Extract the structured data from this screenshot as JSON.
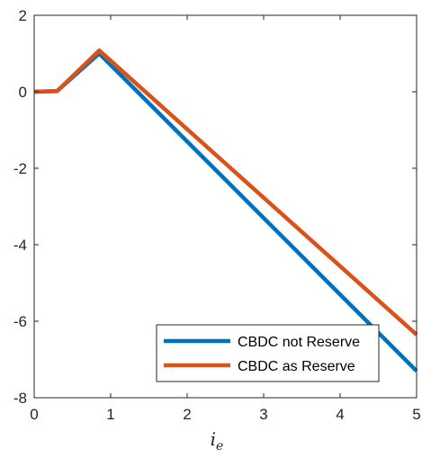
{
  "chart_data": {
    "type": "line",
    "title": "",
    "xlabel": "i",
    "xlabel_subscript": "e",
    "ylabel": "",
    "xlim": [
      0,
      5
    ],
    "ylim": [
      -8,
      2
    ],
    "xticks": [
      0,
      1,
      2,
      3,
      4,
      5
    ],
    "yticks": [
      -8,
      -6,
      -4,
      -2,
      0,
      2
    ],
    "xtick_labels": [
      "0",
      "1",
      "2",
      "3",
      "4",
      "5"
    ],
    "ytick_labels": [
      "-8",
      "-6",
      "-4",
      "-2",
      "0",
      "2"
    ],
    "grid": false,
    "legend_position": "bottom-right",
    "series": [
      {
        "name": "CBDC not Reserve",
        "color": "#0072BD",
        "x": [
          0,
          0.3,
          0.85,
          5
        ],
        "y": [
          0,
          0.02,
          1.0,
          -7.3
        ]
      },
      {
        "name": "CBDC as Reserve",
        "color": "#D95319",
        "x": [
          0,
          0.3,
          0.85,
          5
        ],
        "y": [
          0,
          0.02,
          1.08,
          -6.35
        ]
      }
    ]
  }
}
